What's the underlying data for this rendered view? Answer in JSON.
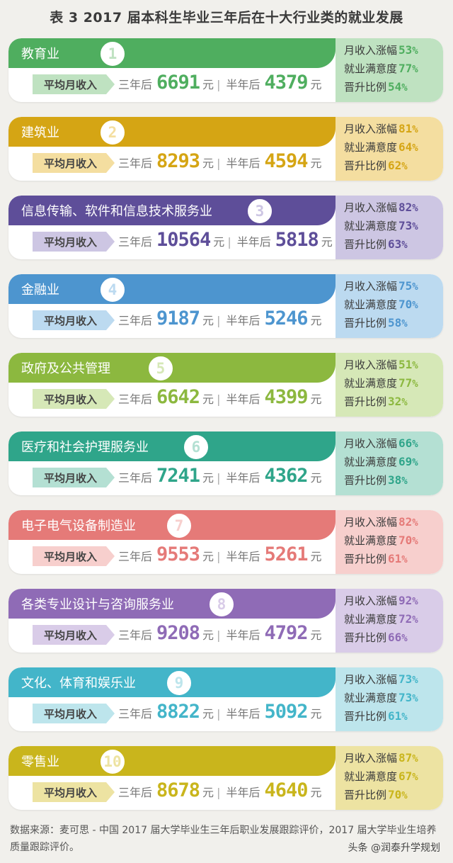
{
  "title": "表 3  2017 届本科生毕业三年后在十大行业类的就业发展",
  "labels": {
    "avg_income": "平均月收入",
    "three_year": "三年后",
    "half_year": "半年后",
    "yuan": "元",
    "sep": "|",
    "income_growth": "月收入涨幅",
    "satisfaction": "就业满意度",
    "promotion": "晋升比例",
    "percent": "%"
  },
  "industries": [
    {
      "name": "教育业",
      "rank": "1",
      "three_year": "6691",
      "half_year": "4379",
      "growth": "53",
      "satisfaction": "77",
      "promotion": "54",
      "color": "#4fae5f",
      "light": "#bfe2c1"
    },
    {
      "name": "建筑业",
      "rank": "2",
      "three_year": "8293",
      "half_year": "4594",
      "growth": "81",
      "satisfaction": "64",
      "promotion": "62",
      "color": "#d5a514",
      "light": "#f4dea0"
    },
    {
      "name": "信息传输、软件和信息技术服务业",
      "rank": "3",
      "three_year": "10564",
      "half_year": "5818",
      "growth": "82",
      "satisfaction": "73",
      "promotion": "63",
      "color": "#5e4e99",
      "light": "#cdc6e3"
    },
    {
      "name": "金融业",
      "rank": "4",
      "three_year": "9187",
      "half_year": "5246",
      "growth": "75",
      "satisfaction": "70",
      "promotion": "58",
      "color": "#4d95cf",
      "light": "#bcdaf0"
    },
    {
      "name": "政府及公共管理",
      "rank": "5",
      "three_year": "6642",
      "half_year": "4399",
      "growth": "51",
      "satisfaction": "77",
      "promotion": "32",
      "color": "#8cb83f",
      "light": "#d6e8b7"
    },
    {
      "name": "医疗和社会护理服务业",
      "rank": "6",
      "three_year": "7241",
      "half_year": "4362",
      "growth": "66",
      "satisfaction": "69",
      "promotion": "38",
      "color": "#2fa58a",
      "light": "#b4e0d3"
    },
    {
      "name": "电子电气设备制造业",
      "rank": "7",
      "three_year": "9553",
      "half_year": "5261",
      "growth": "82",
      "satisfaction": "70",
      "promotion": "61",
      "color": "#e57a78",
      "light": "#f7cfcd"
    },
    {
      "name": "各类专业设计与咨询服务业",
      "rank": "8",
      "three_year": "9208",
      "half_year": "4792",
      "growth": "92",
      "satisfaction": "72",
      "promotion": "66",
      "color": "#8f6bb6",
      "light": "#d9cce8"
    },
    {
      "name": "文化、体育和娱乐业",
      "rank": "9",
      "three_year": "8822",
      "half_year": "5092",
      "growth": "73",
      "satisfaction": "73",
      "promotion": "61",
      "color": "#43b5c9",
      "light": "#bde5ec"
    },
    {
      "name": "零售业",
      "rank": "10",
      "three_year": "8678",
      "half_year": "4640",
      "growth": "87",
      "satisfaction": "67",
      "promotion": "70",
      "color": "#c9b51c",
      "light": "#ede3a2"
    }
  ],
  "footer": {
    "source": "数据来源：麦可思 - 中国 2017 届大学毕业生三年后职业发展跟踪评价，2017 届大学毕业生培养质量跟踪评价。",
    "watermark": "头条 @润泰升学规划"
  }
}
